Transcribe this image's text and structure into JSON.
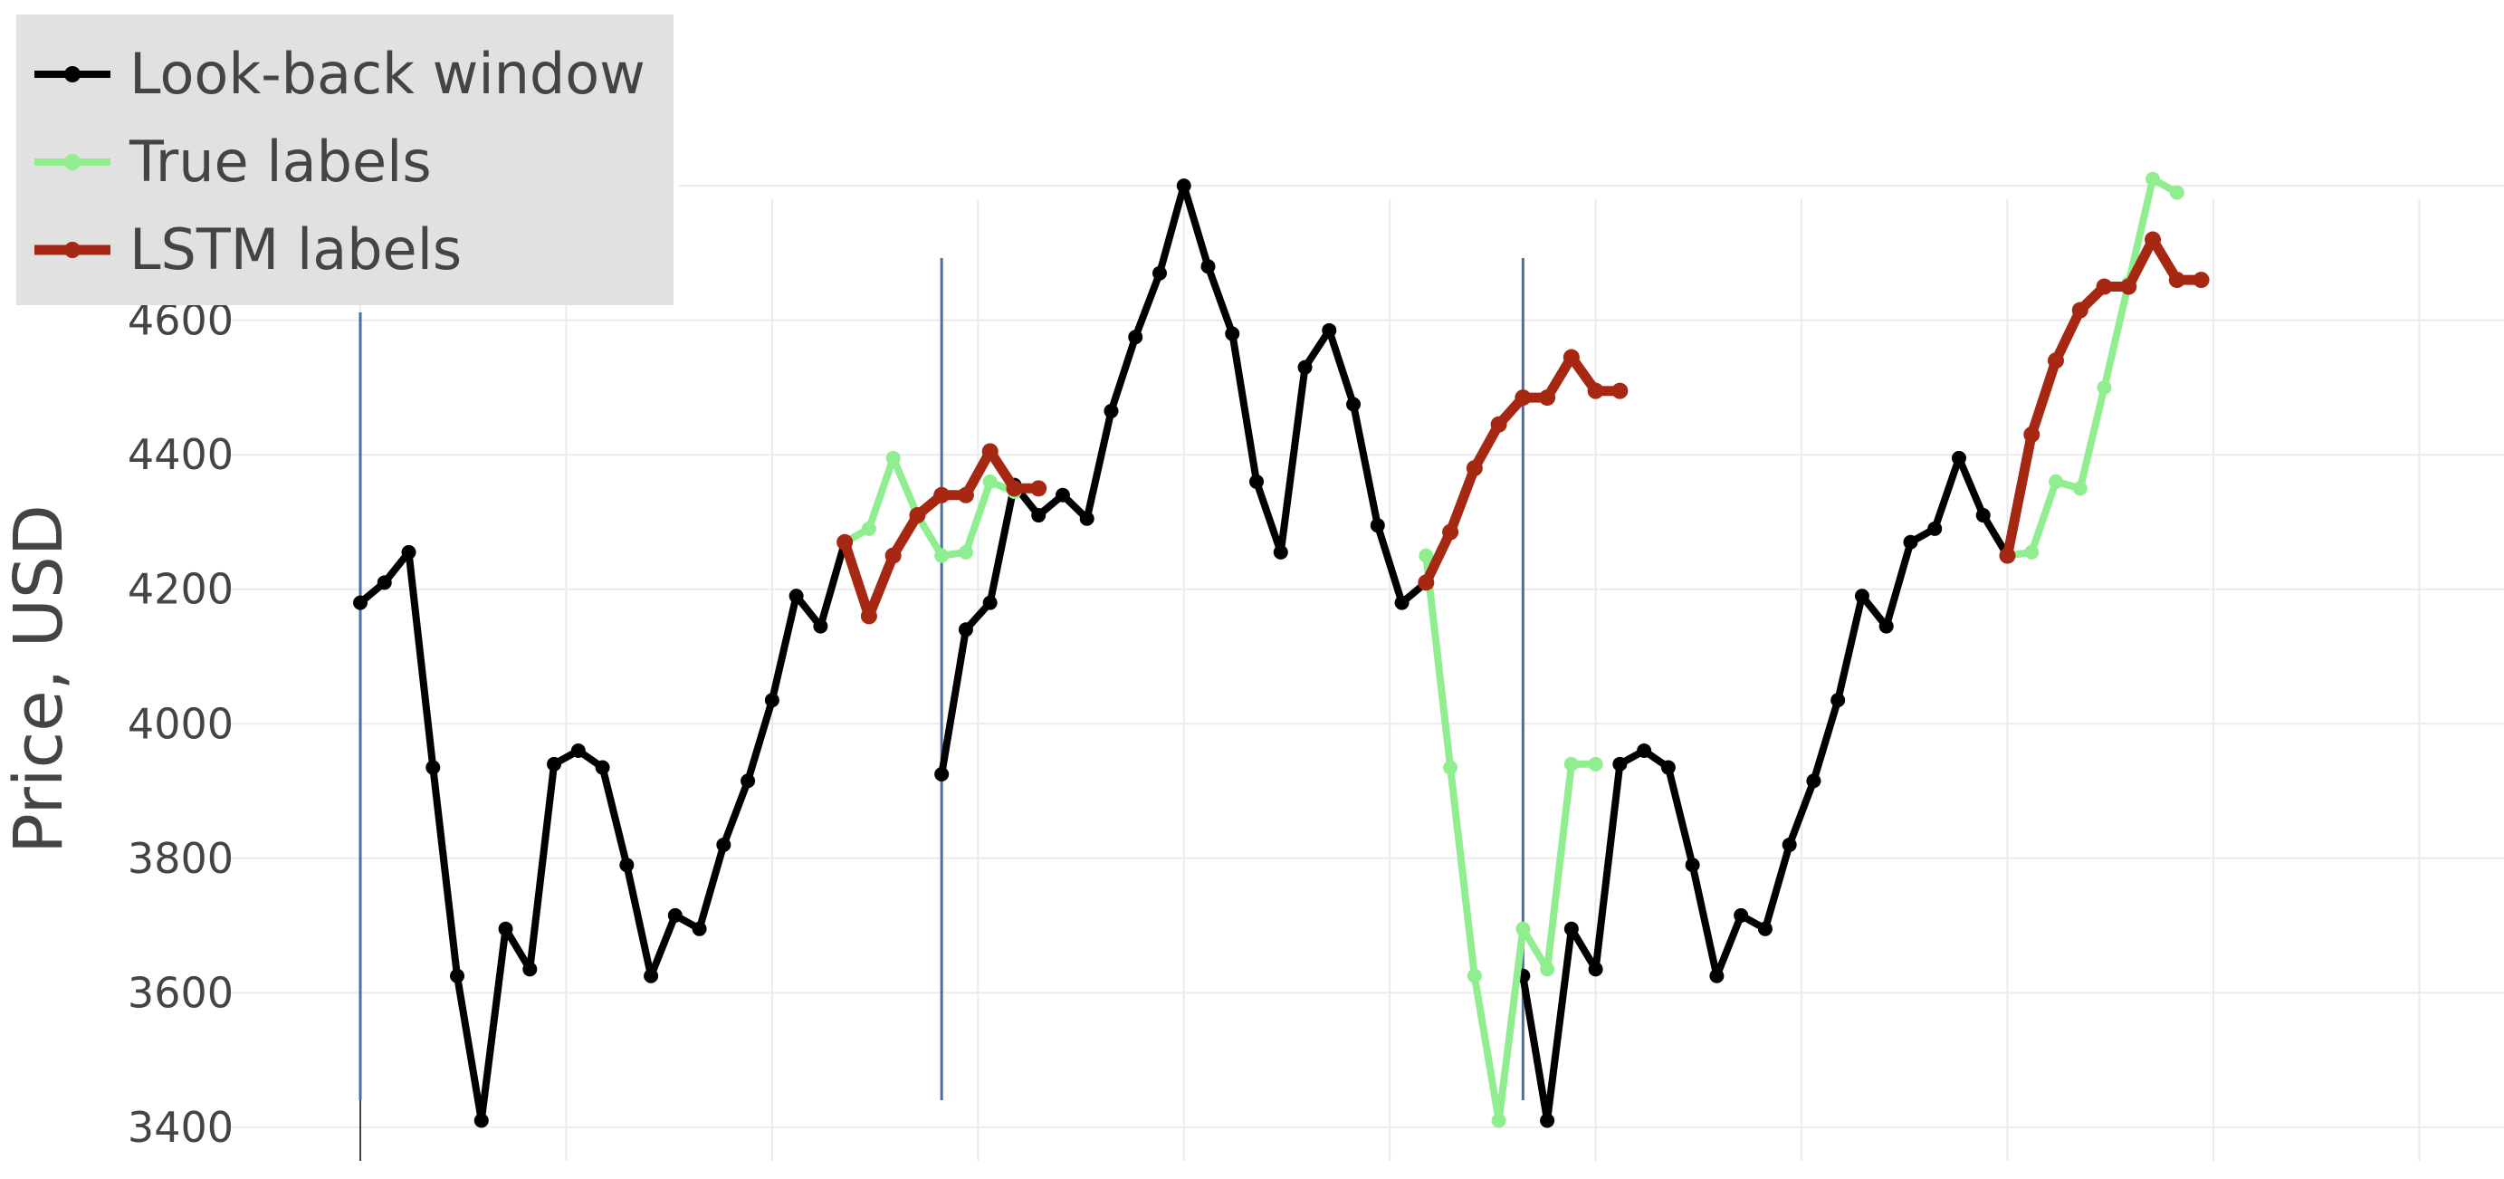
{
  "chart_data": {
    "type": "line",
    "title": "",
    "xlabel": "",
    "ylabel": "Price, USD",
    "ylim": [
      3350,
      4780
    ],
    "yticks": [
      3400,
      3600,
      3800,
      4000,
      4200,
      4400,
      4600
    ],
    "xlim": [
      0,
      88.5
    ],
    "xgrid": [
      0,
      8.5,
      17,
      25.5,
      34,
      42.5,
      51,
      59.5,
      68,
      76.5,
      85
    ],
    "grid": true,
    "legend_position": "top-left",
    "window_separators_x": [
      0,
      24,
      48
    ],
    "series": [
      {
        "name": "Look-back window",
        "color": "#000000",
        "segments": [
          {
            "x": [
              0,
              1,
              2,
              3,
              4,
              5,
              6,
              7,
              8,
              9,
              10,
              11,
              12,
              13,
              14,
              15,
              16,
              17,
              18,
              19,
              20
            ],
            "y": [
              4180,
              4210,
              4255,
              3935,
              3625,
              3410,
              3695,
              3635,
              3940,
              3960,
              3935,
              3790,
              3625,
              3715,
              3695,
              3820,
              3915,
              4035,
              4190,
              4145,
              4270
            ]
          },
          {
            "x": [
              24,
              25,
              26,
              27,
              28,
              29,
              30,
              31,
              32,
              33,
              34,
              35,
              36,
              37,
              38,
              39,
              40,
              41,
              42,
              43,
              44
            ],
            "y": [
              3925,
              4140,
              4180,
              4355,
              4310,
              4340,
              4305,
              4465,
              4575,
              4670,
              4800,
              4680,
              4580,
              4360,
              4255,
              4530,
              4585,
              4475,
              4295,
              4180,
              4210
            ]
          },
          {
            "x": [
              48,
              49,
              50,
              51,
              52,
              53,
              54,
              55,
              56,
              57,
              58,
              59,
              60,
              61,
              62,
              63,
              64,
              65,
              66,
              67,
              68
            ],
            "y": [
              3625,
              3410,
              3695,
              3635,
              3940,
              3960,
              3935,
              3790,
              3625,
              3715,
              3695,
              3820,
              3915,
              4035,
              4190,
              4145,
              4270,
              4290,
              4395,
              4310,
              4250
            ]
          }
        ]
      },
      {
        "name": "True labels",
        "color": "#90ee90",
        "segments": [
          {
            "x": [
              20,
              21,
              22,
              23,
              24,
              25,
              26,
              27
            ],
            "y": [
              4270,
              4290,
              4395,
              4310,
              4250,
              4255,
              4360,
              4345
            ]
          },
          {
            "x": [
              44,
              45,
              46,
              47,
              48,
              49,
              50,
              51
            ],
            "y": [
              4250,
              3935,
              3625,
              3410,
              3695,
              3635,
              3940,
              3940
            ]
          },
          {
            "x": [
              68,
              69,
              70,
              71,
              72,
              73,
              74,
              75
            ],
            "y": [
              4250,
              4255,
              4360,
              4350,
              4500,
              4655,
              4810,
              4790
            ]
          }
        ]
      },
      {
        "name": "LSTM labels",
        "color": "#a62812",
        "segments": [
          {
            "x": [
              20,
              21,
              22,
              23,
              24,
              25,
              26,
              27,
              28
            ],
            "y": [
              4270,
              4160,
              4250,
              4310,
              4340,
              4340,
              4405,
              4350,
              4350
            ]
          },
          {
            "x": [
              44,
              45,
              46,
              47,
              48,
              49,
              50,
              51,
              52
            ],
            "y": [
              4210,
              4285,
              4380,
              4445,
              4485,
              4485,
              4545,
              4495,
              4495
            ]
          },
          {
            "x": [
              68,
              69,
              70,
              71,
              72,
              73,
              74,
              75,
              76
            ],
            "y": [
              4250,
              4430,
              4540,
              4615,
              4650,
              4650,
              4720,
              4660,
              4660
            ]
          }
        ]
      }
    ]
  }
}
